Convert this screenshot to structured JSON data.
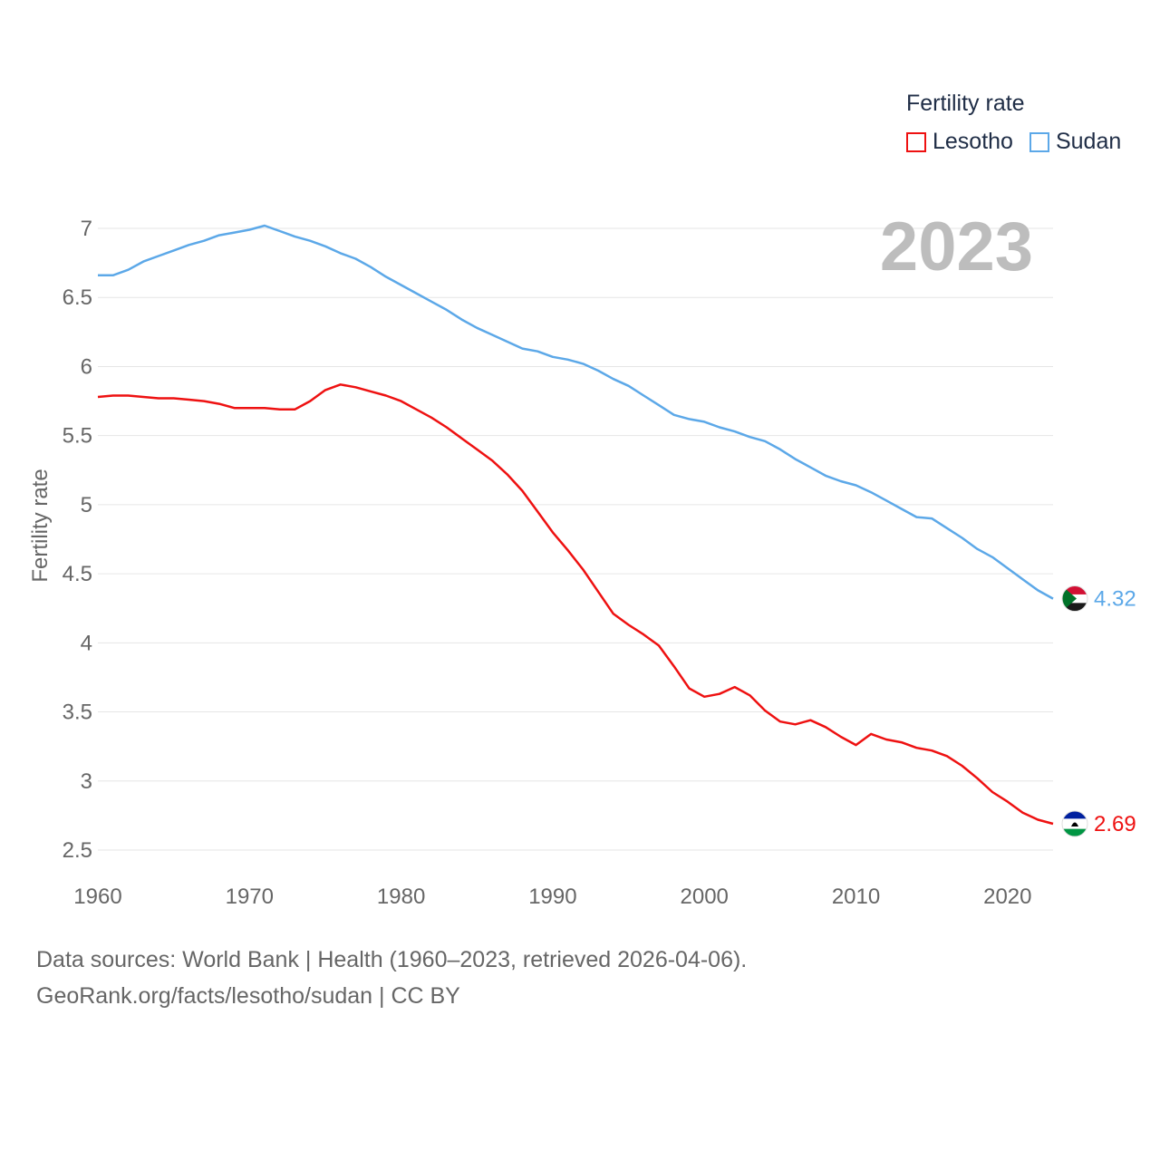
{
  "colors": {
    "lesotho": "#ee1111",
    "sudan": "#5ca8e8",
    "grid": "#e6e6e6",
    "text": "#666666",
    "title": "#1f2d46"
  },
  "legend": {
    "title": "Fertility rate",
    "items": [
      {
        "label": "Lesotho"
      },
      {
        "label": "Sudan"
      }
    ]
  },
  "chart_data": {
    "type": "line",
    "ylabel": "Fertility rate",
    "xlabel": "",
    "year_label": "2023",
    "xlim": [
      1960,
      2023
    ],
    "ylim": [
      2.5,
      7
    ],
    "x_ticks": [
      "1960",
      "1970",
      "1980",
      "1990",
      "2000",
      "2010",
      "2020"
    ],
    "y_ticks": [
      "2.5",
      "3",
      "3.5",
      "4",
      "4.5",
      "5",
      "5.5",
      "6",
      "6.5",
      "7"
    ],
    "x": [
      1960,
      1961,
      1962,
      1963,
      1964,
      1965,
      1966,
      1967,
      1968,
      1969,
      1970,
      1971,
      1972,
      1973,
      1974,
      1975,
      1976,
      1977,
      1978,
      1979,
      1980,
      1981,
      1982,
      1983,
      1984,
      1985,
      1986,
      1987,
      1988,
      1989,
      1990,
      1991,
      1992,
      1993,
      1994,
      1995,
      1996,
      1997,
      1998,
      1999,
      2000,
      2001,
      2002,
      2003,
      2004,
      2005,
      2006,
      2007,
      2008,
      2009,
      2010,
      2011,
      2012,
      2013,
      2014,
      2015,
      2016,
      2017,
      2018,
      2019,
      2020,
      2021,
      2022,
      2023
    ],
    "series": [
      {
        "name": "Lesotho",
        "end_label": "2.69",
        "values": [
          5.78,
          5.79,
          5.79,
          5.78,
          5.77,
          5.77,
          5.76,
          5.75,
          5.73,
          5.7,
          5.7,
          5.7,
          5.69,
          5.69,
          5.75,
          5.83,
          5.87,
          5.85,
          5.82,
          5.79,
          5.75,
          5.69,
          5.63,
          5.56,
          5.48,
          5.4,
          5.32,
          5.22,
          5.1,
          4.95,
          4.8,
          4.67,
          4.53,
          4.37,
          4.21,
          4.13,
          4.06,
          3.98,
          3.83,
          3.67,
          3.61,
          3.63,
          3.68,
          3.62,
          3.51,
          3.43,
          3.41,
          3.44,
          3.39,
          3.32,
          3.26,
          3.34,
          3.3,
          3.28,
          3.24,
          3.22,
          3.18,
          3.11,
          3.02,
          2.92,
          2.85,
          2.77,
          2.72,
          2.69
        ]
      },
      {
        "name": "Sudan",
        "end_label": "4.32",
        "values": [
          6.66,
          6.66,
          6.7,
          6.76,
          6.8,
          6.84,
          6.88,
          6.91,
          6.95,
          6.97,
          6.99,
          7.02,
          6.98,
          6.94,
          6.91,
          6.87,
          6.82,
          6.78,
          6.72,
          6.65,
          6.59,
          6.53,
          6.47,
          6.41,
          6.34,
          6.28,
          6.23,
          6.18,
          6.13,
          6.11,
          6.07,
          6.05,
          6.02,
          5.97,
          5.91,
          5.86,
          5.79,
          5.72,
          5.65,
          5.62,
          5.6,
          5.56,
          5.53,
          5.49,
          5.46,
          5.4,
          5.33,
          5.27,
          5.21,
          5.17,
          5.14,
          5.09,
          5.03,
          4.97,
          4.91,
          4.9,
          4.83,
          4.76,
          4.68,
          4.62,
          4.54,
          4.46,
          4.38,
          4.32
        ]
      }
    ]
  },
  "footer": {
    "line1": "Data sources: World Bank | Health (1960–2023, retrieved 2026-04-06).",
    "line2": "GeoRank.org/facts/lesotho/sudan | CC BY"
  }
}
